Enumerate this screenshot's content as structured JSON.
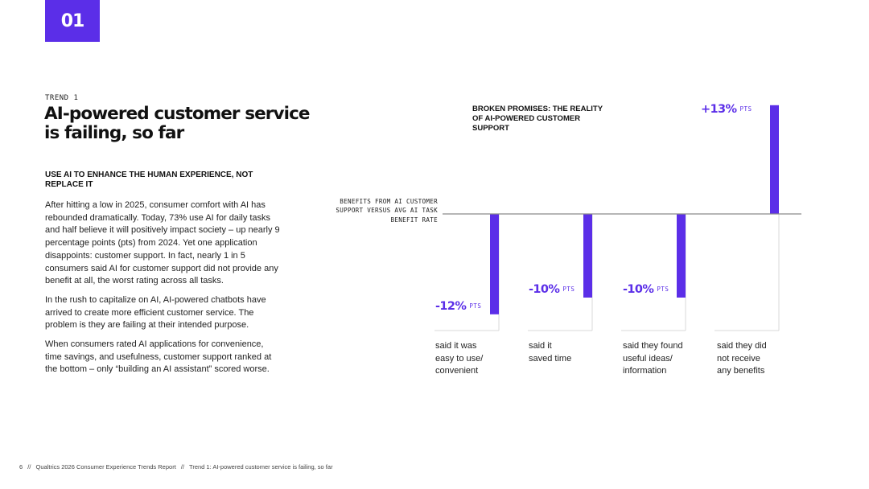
{
  "page": {
    "number": "01"
  },
  "left": {
    "trend_label": "TREND 1",
    "headline": "AI-powered customer service is failing, so far",
    "subhead": "USE AI TO ENHANCE THE HUMAN EXPERIENCE, NOT REPLACE IT",
    "paragraphs": [
      "After hitting a low in 2025, consumer comfort with AI has rebounded dramatically. Today, 73% use AI for daily tasks and half believe it will positively impact society – up nearly 9 percentage points (pts) from 2024. Yet one application disappoints: customer support. In fact, nearly 1 in 5 consumers said AI for customer support did not provide any benefit at all, the worst rating across all tasks.",
      "In the rush to capitalize on AI, AI-powered chatbots have arrived to create more efficient customer service. The problem is they are failing at their intended purpose.",
      "When consumers rated AI applications for convenience, time savings, and usefulness, customer support ranked at the bottom – only “building an AI assistant” scored worse."
    ]
  },
  "footer": {
    "page_num": "6",
    "source": "Qualtrics 2026 Consumer Experience Trends Report",
    "separator": "//",
    "section": "Trend 1: AI-powered customer service is failing, so far"
  },
  "colors": {
    "accent": "#5b2ee8",
    "axis": "#8a8a8a",
    "divider": "#d8d8d8"
  },
  "chart_data": {
    "type": "bar",
    "title": "BROKEN PROMISES: THE REALITY OF AI-POWERED CUSTOMER SUPPORT",
    "axis_label": "BENEFITS FROM AI CUSTOMER SUPPORT VERSUS AVG AI TASK BENEFIT RATE",
    "unit": "PTS",
    "categories": [
      "said it was easy to use/ convenient",
      "said it saved time",
      "said they found useful ideas/ information",
      "said they did not receive any benefits"
    ],
    "category_lines": [
      [
        "said it was",
        "easy to use/",
        "convenient"
      ],
      [
        "said it",
        "saved time"
      ],
      [
        "said they found",
        "useful ideas/",
        "information"
      ],
      [
        "said they did",
        "not receive",
        "any benefits"
      ]
    ],
    "values": [
      -12,
      -10,
      -10,
      13
    ],
    "value_labels": [
      "-12%",
      "-10%",
      "-10%",
      "+13%"
    ],
    "baseline": 0,
    "ylim": [
      -14,
      15
    ]
  }
}
